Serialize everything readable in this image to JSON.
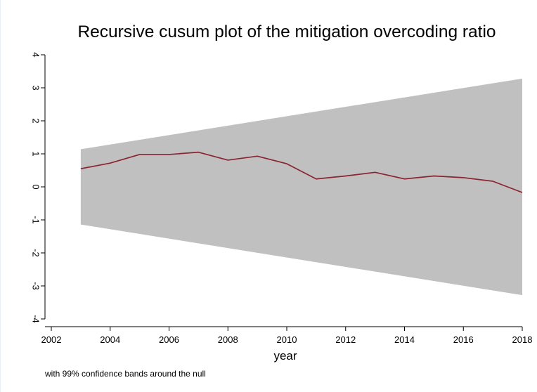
{
  "chart_data": {
    "type": "area",
    "title": "Recursive cusum plot of the mitigation overcoding ratio",
    "xlabel": "year",
    "ylabel": "",
    "note": "with 99% confidence bands around the null",
    "xlim": [
      2002,
      2018
    ],
    "ylim": [
      -4,
      4
    ],
    "xticks": [
      2002,
      2004,
      2006,
      2008,
      2010,
      2012,
      2014,
      2016,
      2018
    ],
    "yticks": [
      -4,
      -3,
      -2,
      -1,
      0,
      1,
      2,
      3,
      4
    ],
    "grid": false,
    "x": [
      2003,
      2004,
      2005,
      2006,
      2007,
      2008,
      2009,
      2010,
      2011,
      2012,
      2013,
      2014,
      2015,
      2016,
      2017,
      2018
    ],
    "series": [
      {
        "values": [
          0.55,
          0.72,
          0.98,
          0.98,
          1.05,
          0.81,
          0.93,
          0.7,
          0.24,
          0.33,
          0.44,
          0.24,
          0.33,
          0.28,
          0.17,
          -0.17
        ]
      }
    ],
    "band": {
      "x": [
        2003,
        2018
      ],
      "upper": [
        1.14,
        3.28
      ],
      "lower": [
        -1.14,
        -3.28
      ]
    },
    "colors": {
      "band": "#c0c0c0",
      "line": "#8b2332",
      "axis": "#000000",
      "background": "#ffffff"
    }
  }
}
